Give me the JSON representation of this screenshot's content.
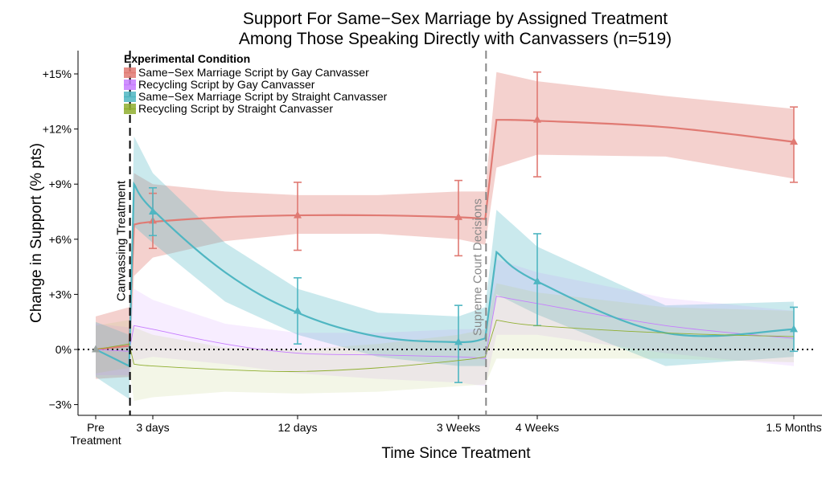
{
  "chart_data": {
    "type": "line",
    "title": "Support For Same−Sex Marriage by Assigned Treatment",
    "subtitle": "Among Those Speaking Directly with Canvassers (n=519)",
    "xlabel": "Time Since Treatment",
    "ylabel": "Change in Support (% pts)",
    "ylim": [
      -3.0,
      15.0
    ],
    "grid": false,
    "x_ticks": [
      {
        "id": "pre",
        "lines": [
          "Pre",
          "Treatment"
        ]
      },
      {
        "id": "d3",
        "lines": [
          "3 days"
        ]
      },
      {
        "id": "d12",
        "lines": [
          "12 days"
        ]
      },
      {
        "id": "w3",
        "lines": [
          "3 Weeks"
        ]
      },
      {
        "id": "w4",
        "lines": [
          "4 Weeks"
        ]
      },
      {
        "id": "m15",
        "lines": [
          "1.5 Months"
        ]
      }
    ],
    "y_ticks": [
      {
        "value": -3,
        "label": "−3%"
      },
      {
        "value": 0,
        "label": "0%"
      },
      {
        "value": 3,
        "label": "+3%"
      },
      {
        "value": 6,
        "label": "+6%"
      },
      {
        "value": 9,
        "label": "+9%"
      },
      {
        "value": 12,
        "label": "+12%"
      },
      {
        "value": 15,
        "label": "+15%"
      }
    ],
    "zero_line": true,
    "vertical_lines": [
      {
        "label": "Canvassing Treatment",
        "between": [
          "pre",
          "d3"
        ],
        "fraction": 0.6,
        "style": "dashed",
        "color": "#000000"
      },
      {
        "label": "Supreme Court Decisions",
        "between": [
          "w3",
          "w4"
        ],
        "fraction": 0.35,
        "style": "dashed",
        "color": "#888888"
      }
    ],
    "legend": {
      "title": "Experimental Condition",
      "placement": "top-left"
    },
    "series": [
      {
        "name": "Same−Sex Marriage Script by Gay Canvasser",
        "color": "#e07a73",
        "band_color": "#e07a73",
        "band_opacity": 0.35,
        "line_width": 2.2,
        "points": [
          {
            "x": "pre",
            "y": 0.0,
            "low": 0.0,
            "high": 0.0
          },
          {
            "x": "d3",
            "y": 7.0,
            "low": 5.5,
            "high": 8.5
          },
          {
            "x": "d12",
            "y": 7.3,
            "low": 5.4,
            "high": 9.1
          },
          {
            "x": "w3",
            "y": 7.2,
            "low": 5.1,
            "high": 9.2
          },
          {
            "x": "w4",
            "y": 12.5,
            "low": 9.4,
            "high": 15.1
          },
          {
            "x": "m15",
            "y": 11.3,
            "low": 9.1,
            "high": 13.2
          }
        ],
        "curve": [
          {
            "x": "pre",
            "y": 0.0,
            "low": -1.6,
            "high": 1.8
          },
          {
            "x": "vline1",
            "y": 0.2,
            "low": -1.5,
            "high": 2.3
          },
          {
            "x": "vline1+",
            "y": 6.8,
            "low": 4.0,
            "high": 9.6
          },
          {
            "x": "d3",
            "y": 6.95,
            "low": 5.0,
            "high": 9.0
          },
          {
            "x": "mid1",
            "y": 7.2,
            "low": 5.9,
            "high": 8.6
          },
          {
            "x": "d12",
            "y": 7.3,
            "low": 6.3,
            "high": 8.4
          },
          {
            "x": "mid2",
            "y": 7.3,
            "low": 6.3,
            "high": 8.4
          },
          {
            "x": "w3",
            "y": 7.2,
            "low": 6.0,
            "high": 8.6
          },
          {
            "x": "vline2",
            "y": 7.1,
            "low": 5.7,
            "high": 8.6
          },
          {
            "x": "vline2+",
            "y": 12.5,
            "low": 9.9,
            "high": 15.1
          },
          {
            "x": "w4",
            "y": 12.45,
            "low": 10.6,
            "high": 14.6
          },
          {
            "x": "mid3",
            "y": 12.1,
            "low": 10.5,
            "high": 13.8
          },
          {
            "x": "m15",
            "y": 11.3,
            "low": 9.3,
            "high": 13.1
          }
        ]
      },
      {
        "name": "Recycling Script by Gay Canvasser",
        "color": "#c77cff",
        "band_color": "#c77cff",
        "band_opacity": 0.14,
        "line_width": 0.9,
        "points": [],
        "curve": [
          {
            "x": "pre",
            "y": 0.0,
            "low": -1.4,
            "high": 1.4
          },
          {
            "x": "vline1",
            "y": -0.1,
            "low": -1.4,
            "high": 1.2
          },
          {
            "x": "vline1+",
            "y": 1.3,
            "low": -0.6,
            "high": 3.3
          },
          {
            "x": "d3",
            "y": 1.1,
            "low": -0.4,
            "high": 2.7
          },
          {
            "x": "mid1",
            "y": 0.3,
            "low": -0.8,
            "high": 1.4
          },
          {
            "x": "d12",
            "y": -0.2,
            "low": -1.3,
            "high": 0.9
          },
          {
            "x": "mid2",
            "y": -0.3,
            "low": -1.6,
            "high": 0.9
          },
          {
            "x": "w3",
            "y": -0.4,
            "low": -1.8,
            "high": 1.1
          },
          {
            "x": "vline2",
            "y": -0.5,
            "low": -2.0,
            "high": 1.1
          },
          {
            "x": "vline2+",
            "y": 2.9,
            "low": 0.8,
            "high": 4.9
          },
          {
            "x": "w4",
            "y": 2.5,
            "low": 0.8,
            "high": 4.2
          },
          {
            "x": "mid3",
            "y": 1.3,
            "low": -0.2,
            "high": 2.8
          },
          {
            "x": "m15",
            "y": 0.6,
            "low": -0.9,
            "high": 2.1
          }
        ]
      },
      {
        "name": "Same−Sex Marriage Script by Straight Canvasser",
        "color": "#4fb6c2",
        "band_color": "#4fb6c2",
        "band_opacity": 0.3,
        "line_width": 2.2,
        "points": [
          {
            "x": "pre",
            "y": 0.0,
            "low": 0.0,
            "high": 0.0
          },
          {
            "x": "d3",
            "y": 7.5,
            "low": 6.2,
            "high": 8.8
          },
          {
            "x": "d12",
            "y": 2.1,
            "low": 0.3,
            "high": 3.9
          },
          {
            "x": "w3",
            "y": 0.4,
            "low": -1.8,
            "high": 2.4
          },
          {
            "x": "w4",
            "y": 3.7,
            "low": 1.3,
            "high": 6.3
          },
          {
            "x": "m15",
            "y": 1.1,
            "low": -0.1,
            "high": 2.3
          }
        ],
        "curve": [
          {
            "x": "pre",
            "y": 0.0,
            "low": -1.5,
            "high": 1.5
          },
          {
            "x": "vline1",
            "y": -0.9,
            "low": -2.7,
            "high": 0.8
          },
          {
            "x": "vline1+",
            "y": 9.0,
            "low": 6.7,
            "high": 11.6
          },
          {
            "x": "d3",
            "y": 7.6,
            "low": 5.8,
            "high": 9.6
          },
          {
            "x": "mid1",
            "y": 4.2,
            "low": 2.6,
            "high": 5.8
          },
          {
            "x": "d12",
            "y": 2.0,
            "low": 0.8,
            "high": 3.3
          },
          {
            "x": "mid2",
            "y": 0.7,
            "low": -0.4,
            "high": 2.0
          },
          {
            "x": "w3",
            "y": 0.4,
            "low": -0.9,
            "high": 1.8
          },
          {
            "x": "vline2",
            "y": 0.6,
            "low": -0.9,
            "high": 2.3
          },
          {
            "x": "vline2+",
            "y": 5.3,
            "low": 3.0,
            "high": 7.6
          },
          {
            "x": "w4",
            "y": 3.7,
            "low": 1.9,
            "high": 5.6
          },
          {
            "x": "mid3",
            "y": 0.9,
            "low": -0.9,
            "high": 2.4
          },
          {
            "x": "m15",
            "y": 1.1,
            "low": -0.4,
            "high": 2.6
          }
        ]
      },
      {
        "name": "Recycling Script by Straight Canvasser",
        "color": "#8fae2f",
        "band_color": "#b5c96b",
        "band_opacity": 0.16,
        "line_width": 0.9,
        "points": [],
        "curve": [
          {
            "x": "pre",
            "y": 0.0,
            "low": -1.3,
            "high": 1.3
          },
          {
            "x": "vline1",
            "y": 0.3,
            "low": -1.0,
            "high": 1.6
          },
          {
            "x": "vline1+",
            "y": -0.8,
            "low": -2.8,
            "high": 1.2
          },
          {
            "x": "d3",
            "y": -0.9,
            "low": -2.6,
            "high": 0.8
          },
          {
            "x": "mid1",
            "y": -1.1,
            "low": -2.3,
            "high": 0.1
          },
          {
            "x": "d12",
            "y": -1.2,
            "low": -2.4,
            "high": 0.0
          },
          {
            "x": "mid2",
            "y": -1.0,
            "low": -2.3,
            "high": 0.3
          },
          {
            "x": "w3",
            "y": -0.6,
            "low": -2.0,
            "high": 0.8
          },
          {
            "x": "vline2",
            "y": -0.4,
            "low": -1.9,
            "high": 1.1
          },
          {
            "x": "vline2+",
            "y": 1.6,
            "low": -0.5,
            "high": 3.6
          },
          {
            "x": "w4",
            "y": 1.3,
            "low": -0.5,
            "high": 3.1
          },
          {
            "x": "mid3",
            "y": 0.9,
            "low": -0.5,
            "high": 2.3
          },
          {
            "x": "m15",
            "y": 0.7,
            "low": -0.7,
            "high": 2.1
          }
        ]
      }
    ]
  }
}
